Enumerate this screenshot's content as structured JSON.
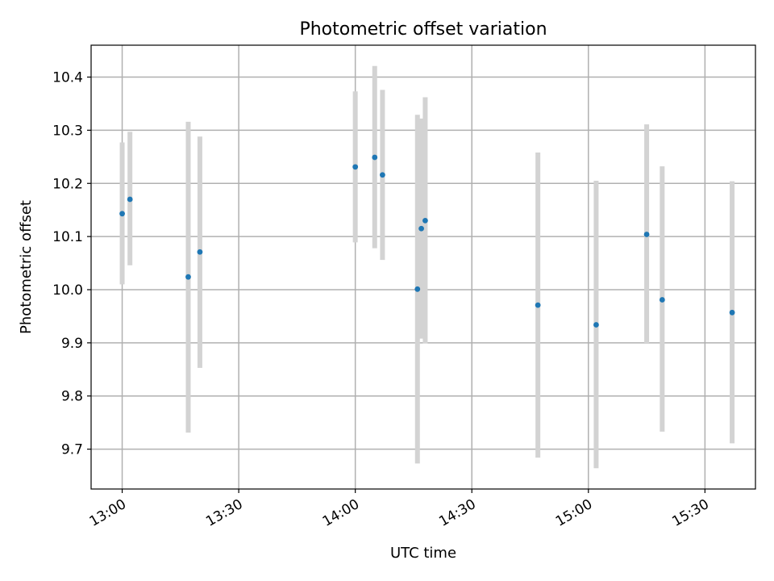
{
  "chart_data": {
    "type": "scatter",
    "title": "Photometric offset variation",
    "xlabel": "UTC time",
    "ylabel": "Photometric offset",
    "x_unit": "UTC hh:mm",
    "xlim": [
      "12:52",
      "15:43"
    ],
    "ylim": [
      9.625,
      10.46
    ],
    "xticks": [
      "13:00",
      "13:30",
      "14:00",
      "14:30",
      "15:00",
      "15:30"
    ],
    "yticks": [
      9.7,
      9.8,
      9.9,
      10.0,
      10.1,
      10.2,
      10.3,
      10.4
    ],
    "ytick_labels": [
      "9.7",
      "9.8",
      "9.9",
      "10.0",
      "10.1",
      "10.2",
      "10.3",
      "10.4"
    ],
    "grid": true,
    "colors": {
      "point": "#1f77b4",
      "errorbar": "#d3d3d3",
      "grid": "#b0b0b0"
    },
    "points": [
      {
        "x": "13:00",
        "y": 10.143,
        "ylo": 10.01,
        "yhi": 10.277
      },
      {
        "x": "13:02",
        "y": 10.17,
        "ylo": 10.046,
        "yhi": 10.297
      },
      {
        "x": "13:17",
        "y": 10.024,
        "ylo": 9.731,
        "yhi": 10.316
      },
      {
        "x": "13:20",
        "y": 10.071,
        "ylo": 9.853,
        "yhi": 10.288
      },
      {
        "x": "14:00",
        "y": 10.231,
        "ylo": 10.089,
        "yhi": 10.373
      },
      {
        "x": "14:05",
        "y": 10.249,
        "ylo": 10.078,
        "yhi": 10.421
      },
      {
        "x": "14:07",
        "y": 10.216,
        "ylo": 10.056,
        "yhi": 10.376
      },
      {
        "x": "14:16",
        "y": 10.001,
        "ylo": 9.673,
        "yhi": 10.329
      },
      {
        "x": "14:17",
        "y": 10.115,
        "ylo": 9.908,
        "yhi": 10.322
      },
      {
        "x": "14:18",
        "y": 10.13,
        "ylo": 9.899,
        "yhi": 10.362
      },
      {
        "x": "14:47",
        "y": 9.971,
        "ylo": 9.684,
        "yhi": 10.258
      },
      {
        "x": "15:02",
        "y": 9.934,
        "ylo": 9.664,
        "yhi": 10.205
      },
      {
        "x": "15:15",
        "y": 10.104,
        "ylo": 9.898,
        "yhi": 10.311
      },
      {
        "x": "15:19",
        "y": 9.981,
        "ylo": 9.733,
        "yhi": 10.232
      },
      {
        "x": "15:37",
        "y": 9.957,
        "ylo": 9.711,
        "yhi": 10.204
      }
    ]
  }
}
